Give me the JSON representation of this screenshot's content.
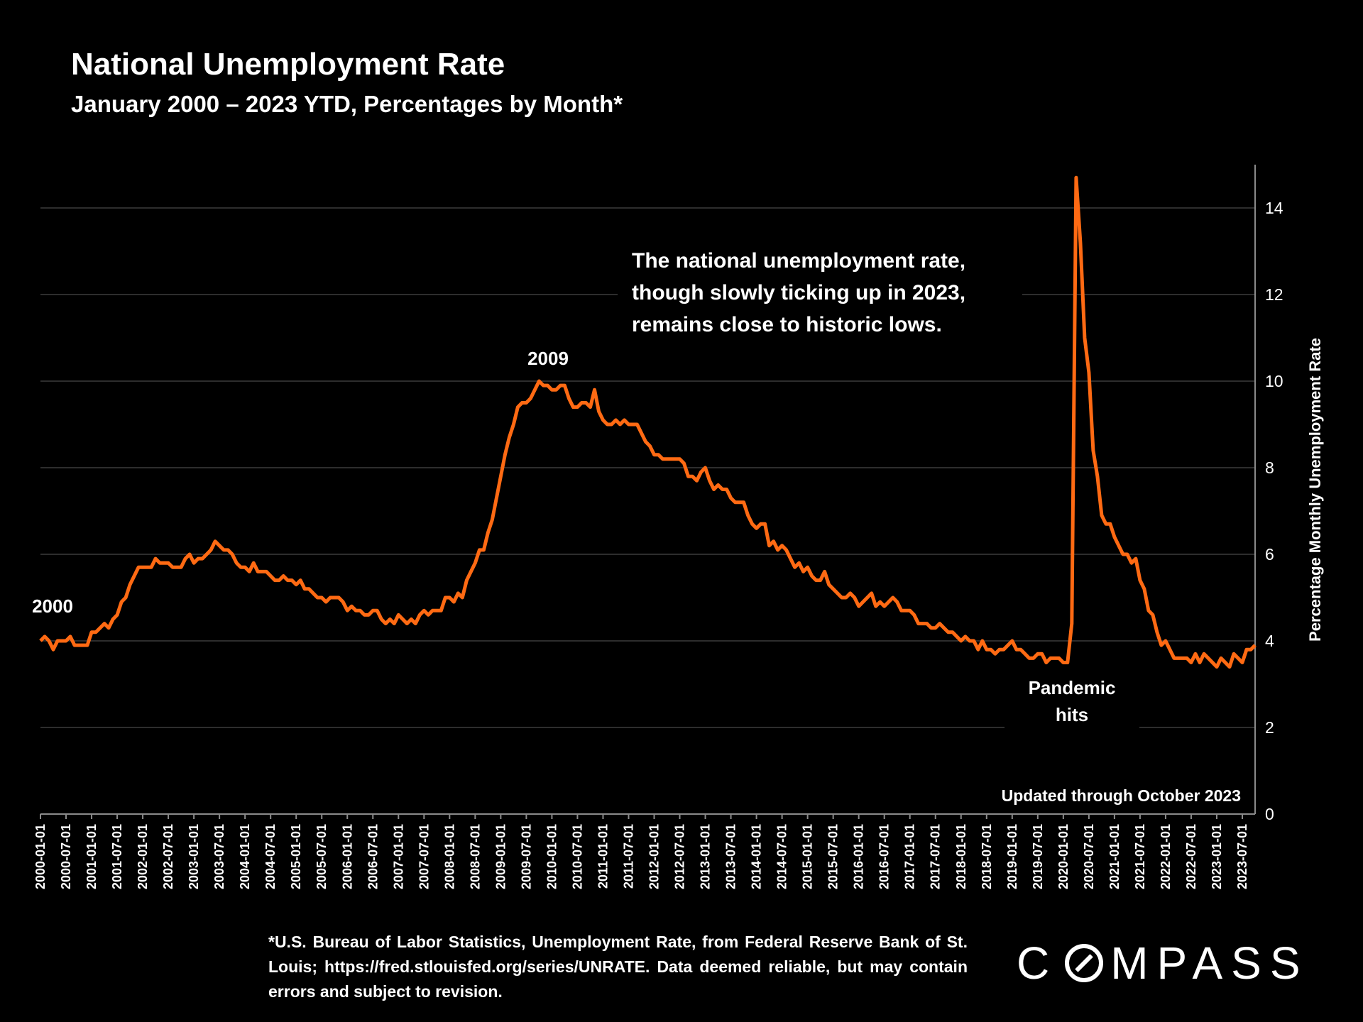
{
  "title": "National Unemployment Rate",
  "subtitle": "January 2000 – 2023 YTD, Percentages by Month*",
  "footnote": "*U.S. Bureau of Labor Statistics, Unemployment Rate, from Federal Reserve Bank of St. Louis; https://fred.stlouisfed.org/series/UNRATE. Data deemed reliable, but may contain errors and subject to revision.",
  "logo": {
    "left": "C",
    "right": "MPASS"
  },
  "colors": {
    "line": "#FF6A13",
    "background": "#000000",
    "grid": "#5a5a5a"
  },
  "chart_data": {
    "type": "line",
    "ylabel": "Percentage Monthly Unemployment Rate",
    "ylim": [
      0,
      15
    ],
    "yticks": [
      0,
      2,
      4,
      6,
      8,
      10,
      12,
      14
    ],
    "x_start": "2000-01-01",
    "x_end": "2023-10-01",
    "xticks": [
      "2000-01-01",
      "2000-07-01",
      "2001-01-01",
      "2001-07-01",
      "2002-01-01",
      "2002-07-01",
      "2003-01-01",
      "2003-07-01",
      "2004-01-01",
      "2004-07-01",
      "2005-01-01",
      "2005-07-01",
      "2006-01-01",
      "2006-07-01",
      "2007-01-01",
      "2007-07-01",
      "2008-01-01",
      "2008-07-01",
      "2009-01-01",
      "2009-07-01",
      "2010-01-01",
      "2010-07-01",
      "2011-01-01",
      "2011-07-01",
      "2012-01-01",
      "2012-07-01",
      "2013-01-01",
      "2013-07-01",
      "2014-01-01",
      "2014-07-01",
      "2015-01-01",
      "2015-07-01",
      "2016-01-01",
      "2016-07-01",
      "2017-01-01",
      "2017-07-01",
      "2018-01-01",
      "2018-07-01",
      "2019-01-01",
      "2019-07-01",
      "2020-01-01",
      "2020-07-01",
      "2021-01-01",
      "2021-07-01",
      "2022-01-01",
      "2022-07-01",
      "2023-01-01",
      "2023-07-01"
    ],
    "grid": true,
    "y_axis_position": "right",
    "series": [
      {
        "values": [
          4.0,
          4.1,
          4.0,
          3.8,
          4.0,
          4.0,
          4.0,
          4.1,
          3.9,
          3.9,
          3.9,
          3.9,
          4.2,
          4.2,
          4.3,
          4.4,
          4.3,
          4.5,
          4.6,
          4.9,
          5.0,
          5.3,
          5.5,
          5.7,
          5.7,
          5.7,
          5.7,
          5.9,
          5.8,
          5.8,
          5.8,
          5.7,
          5.7,
          5.7,
          5.9,
          6.0,
          5.8,
          5.9,
          5.9,
          6.0,
          6.1,
          6.3,
          6.2,
          6.1,
          6.1,
          6.0,
          5.8,
          5.7,
          5.7,
          5.6,
          5.8,
          5.6,
          5.6,
          5.6,
          5.5,
          5.4,
          5.4,
          5.5,
          5.4,
          5.4,
          5.3,
          5.4,
          5.2,
          5.2,
          5.1,
          5.0,
          5.0,
          4.9,
          5.0,
          5.0,
          5.0,
          4.9,
          4.7,
          4.8,
          4.7,
          4.7,
          4.6,
          4.6,
          4.7,
          4.7,
          4.5,
          4.4,
          4.5,
          4.4,
          4.6,
          4.5,
          4.4,
          4.5,
          4.4,
          4.6,
          4.7,
          4.6,
          4.7,
          4.7,
          4.7,
          5.0,
          5.0,
          4.9,
          5.1,
          5.0,
          5.4,
          5.6,
          5.8,
          6.1,
          6.1,
          6.5,
          6.8,
          7.3,
          7.8,
          8.3,
          8.7,
          9.0,
          9.4,
          9.5,
          9.5,
          9.6,
          9.8,
          10.0,
          9.9,
          9.9,
          9.8,
          9.8,
          9.9,
          9.9,
          9.6,
          9.4,
          9.4,
          9.5,
          9.5,
          9.4,
          9.8,
          9.3,
          9.1,
          9.0,
          9.0,
          9.1,
          9.0,
          9.1,
          9.0,
          9.0,
          9.0,
          8.8,
          8.6,
          8.5,
          8.3,
          8.3,
          8.2,
          8.2,
          8.2,
          8.2,
          8.2,
          8.1,
          7.8,
          7.8,
          7.7,
          7.9,
          8.0,
          7.7,
          7.5,
          7.6,
          7.5,
          7.5,
          7.3,
          7.2,
          7.2,
          7.2,
          6.9,
          6.7,
          6.6,
          6.7,
          6.7,
          6.2,
          6.3,
          6.1,
          6.2,
          6.1,
          5.9,
          5.7,
          5.8,
          5.6,
          5.7,
          5.5,
          5.4,
          5.4,
          5.6,
          5.3,
          5.2,
          5.1,
          5.0,
          5.0,
          5.1,
          5.0,
          4.8,
          4.9,
          5.0,
          5.1,
          4.8,
          4.9,
          4.8,
          4.9,
          5.0,
          4.9,
          4.7,
          4.7,
          4.7,
          4.6,
          4.4,
          4.4,
          4.4,
          4.3,
          4.3,
          4.4,
          4.3,
          4.2,
          4.2,
          4.1,
          4.0,
          4.1,
          4.0,
          4.0,
          3.8,
          4.0,
          3.8,
          3.8,
          3.7,
          3.8,
          3.8,
          3.9,
          4.0,
          3.8,
          3.8,
          3.7,
          3.6,
          3.6,
          3.7,
          3.7,
          3.5,
          3.6,
          3.6,
          3.6,
          3.5,
          3.5,
          4.4,
          14.7,
          13.2,
          11.0,
          10.2,
          8.4,
          7.8,
          6.9,
          6.7,
          6.7,
          6.4,
          6.2,
          6.0,
          6.0,
          5.8,
          5.9,
          5.4,
          5.2,
          4.7,
          4.6,
          4.2,
          3.9,
          4.0,
          3.8,
          3.6,
          3.6,
          3.6,
          3.6,
          3.5,
          3.7,
          3.5,
          3.7,
          3.6,
          3.5,
          3.4,
          3.6,
          3.5,
          3.4,
          3.7,
          3.6,
          3.5,
          3.8,
          3.8,
          3.9
        ]
      }
    ],
    "annotations": [
      {
        "text": "2000",
        "x": "2000-01-01",
        "y": 4.0
      },
      {
        "text": "2009",
        "x": "2009-10-01",
        "y": 10.0
      },
      {
        "text": "The national unemployment rate, though slowly ticking up in 2023, remains close to historic lows."
      },
      {
        "text": "Pandemic hits",
        "x": "2020-04-01",
        "y": 3.0
      },
      {
        "text": "Updated through October 2023"
      }
    ]
  }
}
